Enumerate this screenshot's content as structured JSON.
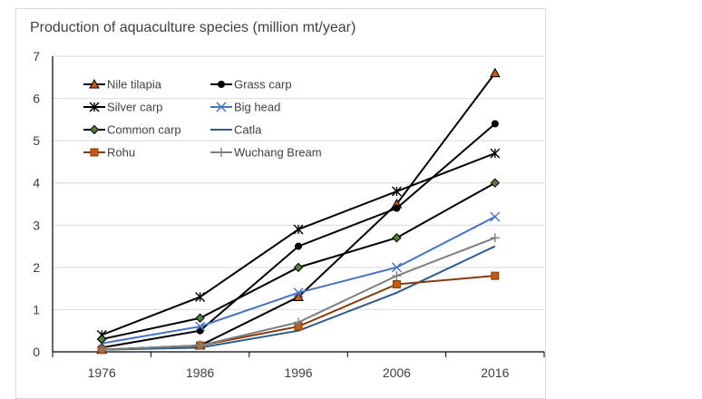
{
  "chart_data": {
    "type": "line",
    "title": "Production of aquaculture species (million mt/year)",
    "xlabel": "",
    "ylabel": "",
    "categories": [
      "1976",
      "1986",
      "1996",
      "2006",
      "2016"
    ],
    "ylim": [
      0,
      7
    ],
    "yticks": [
      "0",
      "1",
      "2",
      "3",
      "4",
      "5",
      "6",
      "7"
    ],
    "grid": true,
    "legend_position": "top-left",
    "series": [
      {
        "name": "Nile tilapia",
        "values": [
          0.05,
          0.15,
          1.3,
          3.5,
          6.6
        ],
        "color": "#000000",
        "marker": "triangle",
        "marker_fill": "#c55a11"
      },
      {
        "name": "Grass carp",
        "values": [
          0.1,
          0.5,
          2.5,
          3.4,
          5.4
        ],
        "color": "#000000",
        "marker": "circle",
        "marker_fill": "#000000"
      },
      {
        "name": "Silver carp",
        "values": [
          0.4,
          1.3,
          2.9,
          3.8,
          4.7
        ],
        "color": "#000000",
        "marker": "asterisk",
        "marker_fill": "#000000"
      },
      {
        "name": "Big head",
        "values": [
          0.2,
          0.6,
          1.4,
          2.0,
          3.2
        ],
        "color": "#4472c4",
        "marker": "x",
        "marker_fill": "#4472c4"
      },
      {
        "name": "Common carp",
        "values": [
          0.3,
          0.8,
          2.0,
          2.7,
          4.0
        ],
        "color": "#000000",
        "marker": "diamond",
        "marker_fill": "#548235"
      },
      {
        "name": "Catla",
        "values": [
          0.05,
          0.1,
          0.5,
          1.4,
          2.5
        ],
        "color": "#2e5c8a",
        "marker": "none",
        "marker_fill": "#2e5c8a"
      },
      {
        "name": "Rohu",
        "values": [
          0.05,
          0.15,
          0.6,
          1.6,
          1.8
        ],
        "color": "#843c0c",
        "marker": "square",
        "marker_fill": "#c55a11"
      },
      {
        "name": "Wuchang Bream",
        "values": [
          0.05,
          0.15,
          0.7,
          1.8,
          2.7
        ],
        "color": "#7f7f7f",
        "marker": "plus",
        "marker_fill": "#7f7f7f"
      }
    ]
  }
}
